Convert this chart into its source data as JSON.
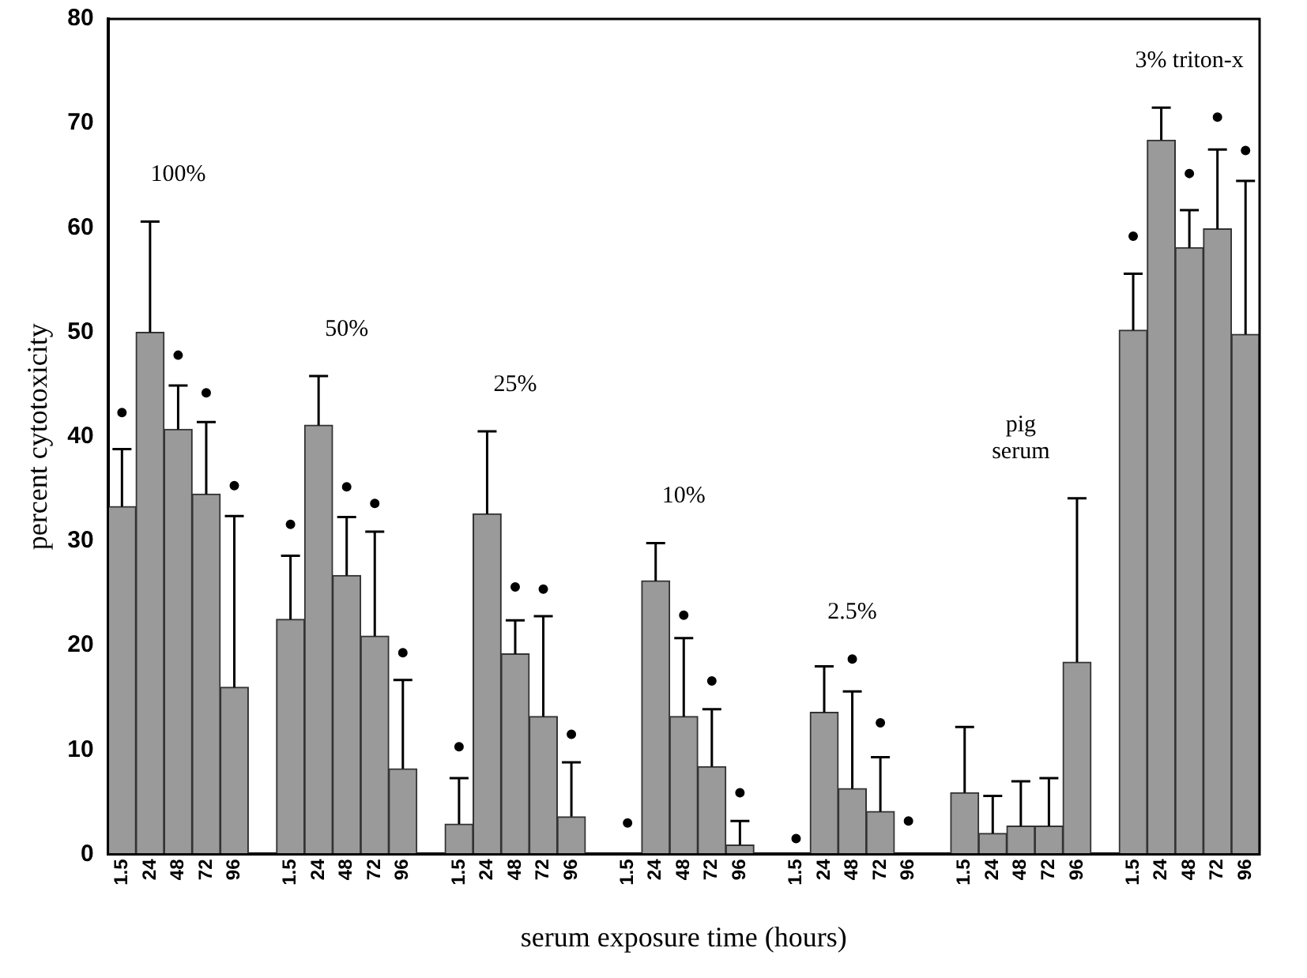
{
  "chart_data": {
    "type": "bar",
    "xlabel": "serum exposure time (hours)",
    "ylabel": "percent cytotoxicity",
    "categories": [
      "1.5",
      "24",
      "48",
      "72",
      "96",
      null,
      "1.5",
      "24",
      "48",
      "72",
      "96",
      null,
      "1.5",
      "24",
      "48",
      "72",
      "96",
      null,
      "1.5",
      "24",
      "48",
      "72",
      "96",
      null,
      "1.5",
      "24",
      "48",
      "72",
      "96",
      null,
      "1.5",
      "24",
      "48",
      "72",
      "96",
      null,
      "1.5",
      "24",
      "48",
      "72",
      "96"
    ],
    "series": [
      {
        "color": "#9a9a9a",
        "values": [
          33.3,
          50,
          40.7,
          34.5,
          16,
          null,
          22.5,
          41.1,
          26.7,
          20.9,
          8.2,
          null,
          2.9,
          32.6,
          19.2,
          13.2,
          3.6,
          null,
          0,
          26.2,
          13.2,
          8.4,
          0.9,
          null,
          0,
          13.6,
          6.3,
          4.1,
          0,
          null,
          5.9,
          2,
          2.7,
          2.7,
          18.4,
          null,
          50.2,
          68.4,
          58.1,
          59.9,
          49.8
        ],
        "errors": [
          [
            33.3,
            38.8
          ],
          [
            50,
            60.6
          ],
          [
            40.7,
            44.9
          ],
          [
            34.5,
            41.4
          ],
          [
            16,
            32.4
          ],
          null,
          [
            22.5,
            28.6
          ],
          [
            41.1,
            45.8
          ],
          [
            26.7,
            32.3
          ],
          [
            20.9,
            30.9
          ],
          [
            8.2,
            16.7
          ],
          null,
          [
            2.9,
            7.3
          ],
          [
            32.6,
            40.5
          ],
          [
            19.2,
            22.4
          ],
          [
            13.2,
            22.8
          ],
          [
            3.6,
            8.8
          ],
          null,
          null,
          [
            26.2,
            29.8
          ],
          [
            13.2,
            20.7
          ],
          [
            8.4,
            13.9
          ],
          [
            0.9,
            3.2
          ],
          null,
          null,
          [
            13.6,
            18
          ],
          [
            6.3,
            15.6
          ],
          [
            4.1,
            9.3
          ],
          null,
          null,
          [
            5.9,
            12.2
          ],
          [
            2,
            5.6
          ],
          [
            2.7,
            7
          ],
          [
            2.7,
            7.3
          ],
          [
            18.4,
            34.1
          ],
          null,
          [
            50.2,
            55.6
          ],
          [
            68.4,
            71.5
          ],
          [
            58.1,
            61.7
          ],
          [
            59.9,
            67.5
          ],
          [
            49.8,
            64.5
          ]
        ]
      },
      {
        "type": "scatter",
        "color": "#000000",
        "marker": "circle",
        "values": [
          42.3,
          null,
          47.8,
          44.2,
          35.3,
          null,
          31.6,
          null,
          35.2,
          33.6,
          19.3,
          null,
          10.3,
          null,
          25.6,
          25.4,
          11.5,
          null,
          3,
          null,
          22.9,
          16.6,
          5.9,
          null,
          1.5,
          null,
          18.7,
          12.6,
          3.2,
          null,
          null,
          null,
          null,
          null,
          null,
          null,
          59.2,
          null,
          65.2,
          70.6,
          67.4
        ]
      }
    ],
    "ylim": [
      0,
      80
    ],
    "yticks": [
      0,
      10,
      20,
      30,
      40,
      50,
      60,
      70,
      80
    ],
    "grid": false,
    "legend": false,
    "annotations": [
      "100%",
      "50%",
      "25%",
      "10%",
      "2.5%",
      "pig\nserum",
      "3% triton-x"
    ]
  }
}
